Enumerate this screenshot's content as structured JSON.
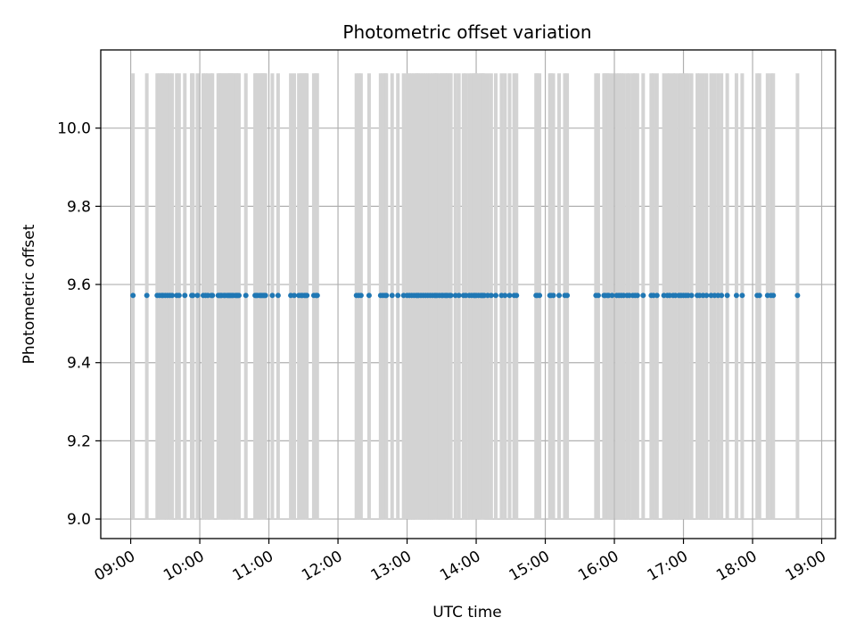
{
  "chart_data": {
    "type": "scatter",
    "title": "Photometric offset variation",
    "xlabel": "UTC time",
    "ylabel": "Photometric offset",
    "xlim": [
      "08:34",
      "19:12"
    ],
    "ylim": [
      8.95,
      10.2
    ],
    "x_ticks": [
      "09:00",
      "10:00",
      "11:00",
      "12:00",
      "13:00",
      "14:00",
      "15:00",
      "16:00",
      "17:00",
      "18:00",
      "19:00"
    ],
    "y_ticks": [
      "9.0",
      "9.2",
      "9.4",
      "9.6",
      "9.8",
      "10.0"
    ],
    "grid": true,
    "series": [
      {
        "marker_color": "#1f77b4",
        "bar_color": "#d3d3d3",
        "bar_range": [
          9.0,
          10.14
        ],
        "y_value": 9.572,
        "x": [
          "09:02",
          "09:14",
          "09:23",
          "09:25",
          "09:27",
          "09:28",
          "09:30",
          "09:32",
          "09:34",
          "09:36",
          "09:40",
          "09:42",
          "09:47",
          "09:53",
          "09:54",
          "09:58",
          "10:03",
          "10:05",
          "10:07",
          "10:10",
          "10:11",
          "10:16",
          "10:17",
          "10:18",
          "10:19",
          "10:21",
          "10:22",
          "10:24",
          "10:25",
          "10:26",
          "10:27",
          "10:28",
          "10:29",
          "10:31",
          "10:32",
          "10:33",
          "10:34",
          "10:40",
          "10:48",
          "10:49",
          "10:50",
          "10:52",
          "10:53",
          "10:54",
          "10:55",
          "10:56",
          "10:57",
          "11:03",
          "11:08",
          "11:19",
          "11:22",
          "11:26",
          "11:28",
          "11:29",
          "11:31",
          "11:32",
          "11:33",
          "11:39",
          "11:41",
          "11:42",
          "12:16",
          "12:18",
          "12:20",
          "12:27",
          "12:37",
          "12:39",
          "12:41",
          "12:42",
          "12:47",
          "12:52",
          "12:57",
          "13:00",
          "13:02",
          "13:04",
          "13:06",
          "13:08",
          "13:09",
          "13:10",
          "13:12",
          "13:14",
          "13:16",
          "13:18",
          "13:20",
          "13:22",
          "13:24",
          "13:25",
          "13:26",
          "13:28",
          "13:30",
          "13:31",
          "13:33",
          "13:34",
          "13:35",
          "13:37",
          "13:38",
          "13:42",
          "13:45",
          "13:49",
          "13:51",
          "13:54",
          "13:56",
          "13:58",
          "13:59",
          "14:00",
          "14:02",
          "14:04",
          "14:05",
          "14:06",
          "14:07",
          "14:10",
          "14:13",
          "14:17",
          "14:22",
          "14:25",
          "14:29",
          "14:33",
          "14:35",
          "14:52",
          "14:53",
          "14:55",
          "15:04",
          "15:05",
          "15:07",
          "15:12",
          "15:17",
          "15:19",
          "15:44",
          "15:46",
          "15:51",
          "15:52",
          "15:54",
          "15:55",
          "15:58",
          "16:02",
          "16:04",
          "16:06",
          "16:08",
          "16:11",
          "16:13",
          "16:16",
          "16:18",
          "16:20",
          "16:25",
          "16:32",
          "16:34",
          "16:37",
          "16:43",
          "16:46",
          "16:48",
          "16:51",
          "16:53",
          "16:56",
          "16:58",
          "17:00",
          "17:02",
          "17:04",
          "17:07",
          "17:12",
          "17:14",
          "17:17",
          "17:20",
          "17:24",
          "17:27",
          "17:30",
          "17:33",
          "17:38",
          "17:46",
          "17:51",
          "18:04",
          "18:06",
          "18:13",
          "18:16",
          "18:18",
          "18:39"
        ]
      }
    ]
  }
}
